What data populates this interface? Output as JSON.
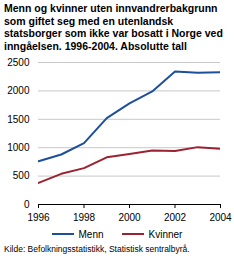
{
  "chart_data": {
    "type": "line",
    "title": "Menn og kvinner uten innvandrerbakgrunn som giftet seg med en utenlandsk statsborger som ikke var bosatt i Norge ved inngåelsen. 1996-2004. Absolutte tall",
    "caption": "Kilde: Befolkningsstatistikk, Statistisk sentralbyrå.",
    "x": [
      1996,
      1997,
      1998,
      1999,
      2000,
      2001,
      2002,
      2003,
      2004
    ],
    "series": [
      {
        "name": "Menn",
        "color": "#1d4f9b",
        "values": [
          760,
          880,
          1080,
          1520,
          1780,
          1990,
          2340,
          2320,
          2330
        ]
      },
      {
        "name": "Kvinner",
        "color": "#9b2231",
        "values": [
          380,
          540,
          640,
          830,
          890,
          950,
          940,
          1010,
          980
        ]
      }
    ],
    "xlim": [
      1996,
      2004
    ],
    "xticks": [
      1996,
      1998,
      2000,
      2002,
      2004
    ],
    "ylim": [
      0,
      2500
    ],
    "yticks": [
      0,
      500,
      1000,
      1500,
      2000,
      2500
    ],
    "grid": true,
    "legend": "bottom"
  }
}
